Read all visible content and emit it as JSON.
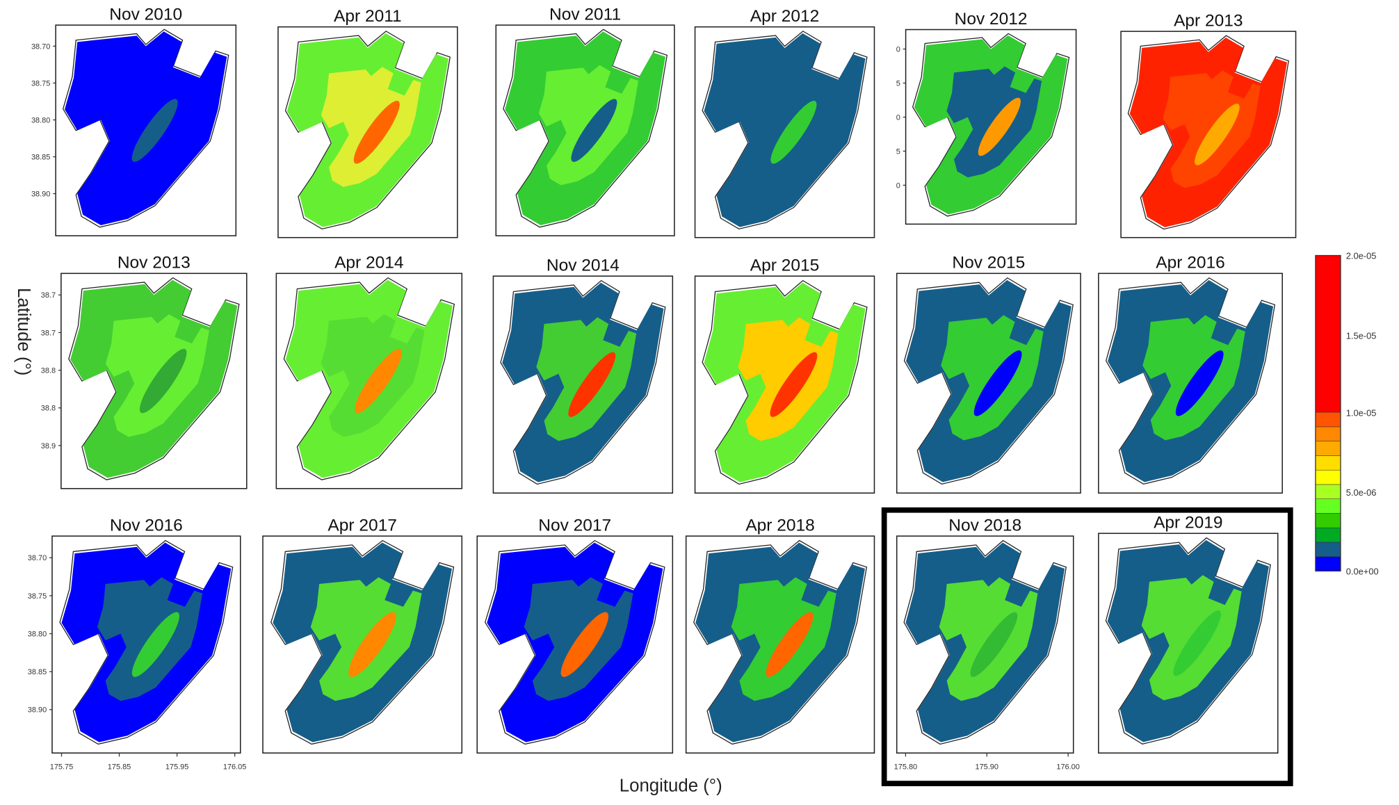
{
  "panels": [
    {
      "title": "Nov 2010",
      "y_labels": [
        "38.70",
        "38.75",
        "38.80",
        "38.85",
        "38.90"
      ]
    },
    {
      "title": "Apr 2011"
    },
    {
      "title": "Nov 2011"
    },
    {
      "title": "Apr 2012"
    },
    {
      "title": "Nov 2012",
      "y_labels": [
        "0",
        "5",
        "0",
        "5",
        "0"
      ]
    },
    {
      "title": "Apr 2013"
    },
    {
      "title": "Nov 2013",
      "y_labels": [
        "38.7",
        "38.7",
        "38.8",
        "38.8",
        "38.9"
      ]
    },
    {
      "title": "Apr 2014"
    },
    {
      "title": "Nov 2014"
    },
    {
      "title": "Apr 2015"
    },
    {
      "title": "Nov 2015"
    },
    {
      "title": "Apr 2016"
    },
    {
      "title": "Nov 2016",
      "y_labels": [
        "38.70",
        "38.75",
        "38.80",
        "38.85",
        "38.90"
      ],
      "x_labels": [
        "175.75",
        "175.85",
        "175.95",
        "176.05"
      ]
    },
    {
      "title": "Apr 2017"
    },
    {
      "title": "Nov 2017"
    },
    {
      "title": "Apr 2018"
    },
    {
      "title": "Nov 2018",
      "x_labels": [
        "175.80",
        "175.90",
        "176.00"
      ]
    },
    {
      "title": "Apr 2019"
    }
  ],
  "y_axis_label": "Latitude (°)",
  "x_axis_label": "Longitude (°)",
  "colorbar_labels": [
    "2.0e-05",
    "1.5e-05",
    "1.0e-05",
    "5.0e-06",
    "0.0e+00"
  ]
}
